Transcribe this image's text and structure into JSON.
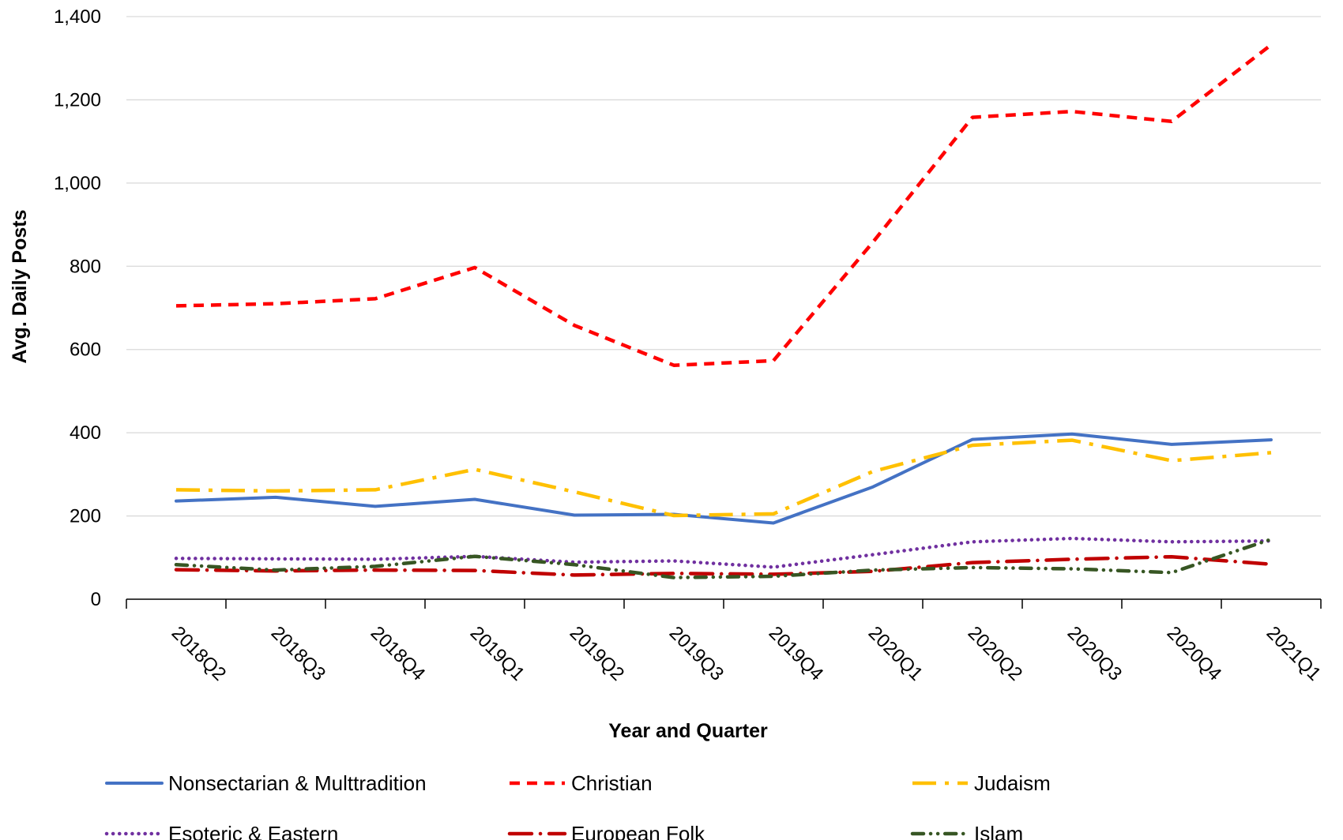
{
  "chart_data": {
    "type": "line",
    "xlabel": "Year and Quarter",
    "ylabel": "Avg. Daily Posts",
    "ylim": [
      0,
      1400
    ],
    "yticks": [
      0,
      200,
      400,
      600,
      800,
      1000,
      1200,
      1400
    ],
    "ytick_labels": [
      "0",
      "200",
      "400",
      "600",
      "800",
      "1,000",
      "1,200",
      "1,400"
    ],
    "grid": "horizontal",
    "legend_position": "bottom",
    "categories": [
      "2018Q2",
      "2018Q3",
      "2018Q4",
      "2019Q1",
      "2019Q2",
      "2019Q3",
      "2019Q4",
      "2020Q1",
      "2020Q2",
      "2020Q3",
      "2020Q4",
      "2021Q1"
    ],
    "series": [
      {
        "name": "Nonsectarian & Multtradition",
        "color": "#4472C4",
        "style": "solid",
        "values": [
          236,
          245,
          223,
          240,
          202,
          204,
          183,
          270,
          384,
          397,
          372,
          383
        ]
      },
      {
        "name": "Christian",
        "color": "#FF0000",
        "style": "dash",
        "values": [
          705,
          710,
          722,
          797,
          658,
          562,
          573,
          858,
          1158,
          1172,
          1148,
          1332
        ]
      },
      {
        "name": "Judaism",
        "color": "#FFC000",
        "style": "longdashdot",
        "values": [
          263,
          260,
          263,
          312,
          258,
          201,
          205,
          307,
          370,
          382,
          333,
          352
        ]
      },
      {
        "name": "Esoteric & Eastern",
        "color": "#7030A0",
        "style": "dot",
        "values": [
          98,
          97,
          96,
          103,
          89,
          92,
          77,
          107,
          138,
          146,
          138,
          140
        ]
      },
      {
        "name": "European Folk",
        "color": "#C00000",
        "style": "longdashdot2",
        "values": [
          71,
          68,
          70,
          69,
          58,
          62,
          60,
          67,
          88,
          96,
          102,
          84
        ]
      },
      {
        "name": "Islam",
        "color": "#375623",
        "style": "dashdotdot",
        "values": [
          83,
          70,
          79,
          103,
          83,
          52,
          55,
          70,
          76,
          73,
          64,
          144
        ]
      }
    ]
  }
}
